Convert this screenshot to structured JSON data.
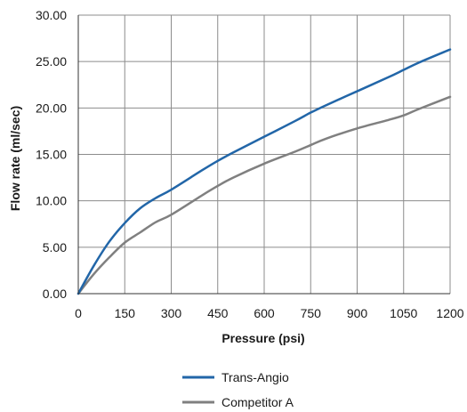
{
  "chart_data": {
    "type": "line",
    "title": "",
    "xlabel": "Pressure (psi)",
    "ylabel": "Flow rate (ml/sec)",
    "xlim": [
      0,
      1200
    ],
    "ylim": [
      0,
      30
    ],
    "x_ticks": [
      0,
      150,
      300,
      450,
      600,
      750,
      900,
      1050,
      1200
    ],
    "x_tick_labels": [
      "0",
      "150",
      "300",
      "450",
      "600",
      "750",
      "900",
      "1050",
      "1200"
    ],
    "y_ticks": [
      0,
      5,
      10,
      15,
      20,
      25,
      30
    ],
    "y_tick_labels": [
      "0.00",
      "5.00",
      "10.00",
      "15.00",
      "20.00",
      "25.00",
      "30.00"
    ],
    "grid": true,
    "legend_position": "bottom",
    "series": [
      {
        "name": "Trans-Angio",
        "color": "#2266a8",
        "x": [
          0,
          50,
          100,
          150,
          200,
          250,
          300,
          400,
          450,
          500,
          600,
          700,
          750,
          800,
          900,
          1000,
          1050,
          1100,
          1200
        ],
        "y": [
          0,
          3.0,
          5.6,
          7.6,
          9.2,
          10.3,
          11.2,
          13.3,
          14.3,
          15.2,
          16.9,
          18.6,
          19.5,
          20.3,
          21.8,
          23.3,
          24.1,
          24.9,
          26.3
        ]
      },
      {
        "name": "Competitor A",
        "color": "#808080",
        "x": [
          0,
          50,
          100,
          150,
          200,
          250,
          300,
          400,
          450,
          500,
          600,
          700,
          750,
          800,
          900,
          1000,
          1050,
          1100,
          1200
        ],
        "y": [
          0,
          2.1,
          3.9,
          5.5,
          6.6,
          7.7,
          8.5,
          10.6,
          11.6,
          12.5,
          14.0,
          15.3,
          16.0,
          16.7,
          17.8,
          18.7,
          19.2,
          19.9,
          21.2
        ]
      }
    ]
  }
}
